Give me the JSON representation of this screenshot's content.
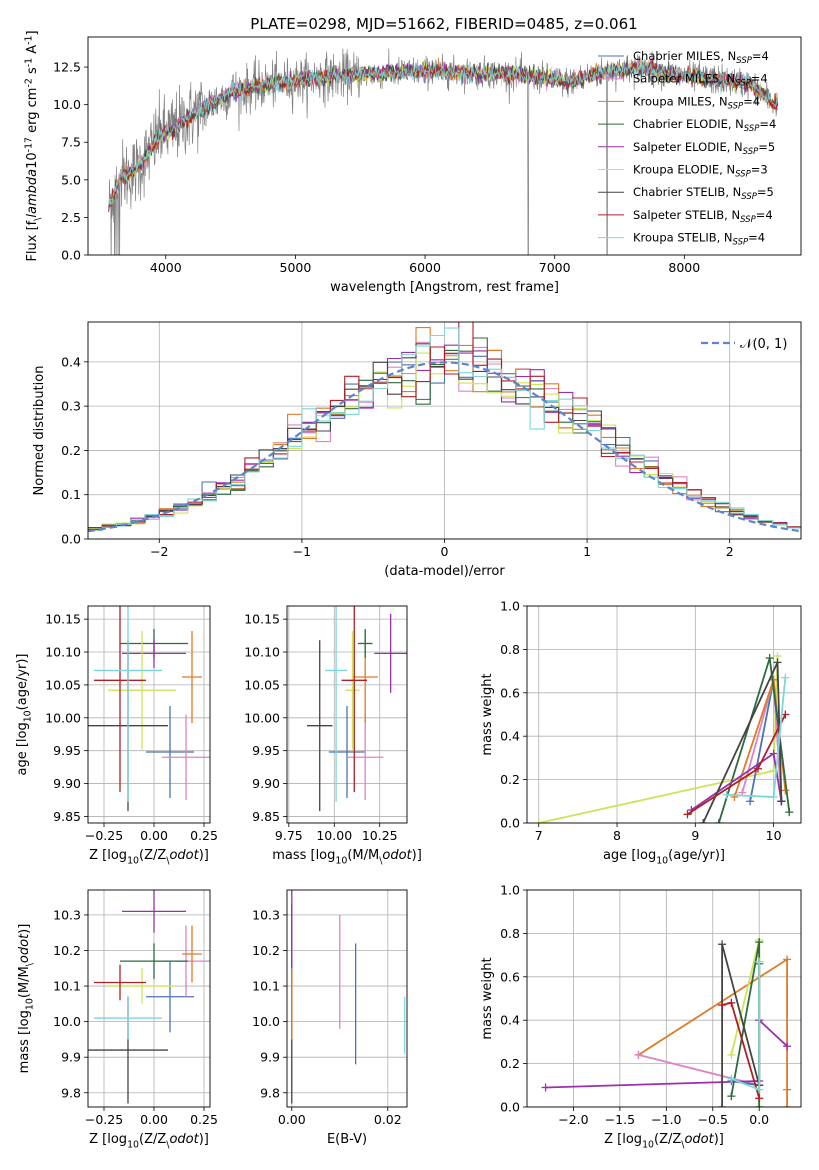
{
  "figure_title": "PLATE=0298, MJD=51662, FIBERID=0485, z=0.061",
  "series": [
    {
      "key": "chab_miles",
      "label": "Chabrier MILES, N<sub>SSP</sub>=4",
      "color": "#4c72b0"
    },
    {
      "key": "salp_miles",
      "label": "Salpeter MILES, N<sub>SSP</sub>=4",
      "color": "#dd84c4"
    },
    {
      "key": "krou_miles",
      "label": "Kroupa MILES, N<sub>SSP</sub>=4",
      "color": "#e07a27"
    },
    {
      "key": "chab_elodie",
      "label": "Chabrier ELODIE, N<sub>SSP</sub>=4",
      "color": "#2e6a3d"
    },
    {
      "key": "salp_elodie",
      "label": "Salpeter ELODIE, N<sub>SSP</sub>=5",
      "color": "#9b2fae"
    },
    {
      "key": "krou_elodie",
      "label": "Kroupa ELODIE, N<sub>SSP</sub>=3",
      "color": "#cfe356"
    },
    {
      "key": "chab_stelib",
      "label": "Chabrier STELIB, N<sub>SSP</sub>=5",
      "color": "#444444"
    },
    {
      "key": "salp_stelib",
      "label": "Salpeter STELIB, N<sub>SSP</sub>=4",
      "color": "#b01f24"
    },
    {
      "key": "krou_stelib",
      "label": "Kroupa STELIB, N<sub>SSP</sub>=4",
      "color": "#7fd6d8"
    }
  ],
  "chart_data": [
    {
      "id": "spectrum",
      "type": "line",
      "xlabel": "wavelength [Angstrom, rest frame]",
      "ylabel": "Flux [f$_\\lambda$10$^{-17}$ erg cm$^{-2}$ s$^{-1}$ A$^{-1}$]",
      "xlim": [
        3400,
        8900
      ],
      "ylim": [
        0,
        14.5
      ],
      "xticks": [
        4000,
        5000,
        6000,
        7000,
        8000
      ],
      "yticks": [
        0.0,
        2.5,
        5.0,
        7.5,
        10.0,
        12.5
      ],
      "continuum": {
        "x": [
          3550,
          3650,
          3750,
          3850,
          3950,
          4050,
          4150,
          4300,
          4500,
          4700,
          4900,
          5100,
          5300,
          5500,
          5700,
          5900,
          6100,
          6300,
          6500,
          6700,
          6900,
          7100,
          7300,
          7500,
          7700,
          7900,
          8100,
          8300,
          8500,
          8700
        ],
        "y": [
          3.0,
          5.2,
          5.5,
          6.5,
          8.0,
          8.3,
          9.0,
          9.8,
          10.8,
          11.2,
          11.5,
          11.7,
          11.9,
          12.0,
          12.1,
          12.2,
          12.2,
          12.1,
          12.1,
          12.0,
          11.8,
          11.5,
          12.0,
          12.3,
          12.5,
          12.0,
          11.8,
          11.6,
          11.4,
          10.0
        ]
      },
      "data_color": "#808080",
      "data_dropouts": [
        6795,
        7405
      ]
    },
    {
      "id": "residual-hist",
      "type": "histogram",
      "xlabel": "(data-model)/error",
      "ylabel": "Normed distribution",
      "xlim": [
        -2.5,
        2.5
      ],
      "ylim": [
        0,
        0.49
      ],
      "xticks": [
        -2,
        -1,
        0,
        1,
        2
      ],
      "yticks": [
        0.0,
        0.1,
        0.2,
        0.3,
        0.4
      ],
      "bin_width": 0.1,
      "gaussian_label": "$\\mathcal{N}(0, 1)$",
      "gaussian_color": "#5b84d1"
    },
    {
      "id": "age-vs-z",
      "type": "errorbar",
      "xlabel": "Z [log$_{10}$(Z/Z$_\\odot$)]",
      "ylabel": "age  [log$_{10}$(age/yr)]",
      "xlim": [
        -0.33,
        0.28
      ],
      "ylim": [
        9.84,
        10.17
      ],
      "xticks": [
        -0.25,
        0.0,
        0.25
      ],
      "yticks": [
        9.85,
        9.9,
        9.95,
        10.0,
        10.05,
        10.1,
        10.15
      ],
      "points": [
        {
          "s": "chab_miles",
          "x": 0.08,
          "y": 9.948,
          "xerr": 0.12,
          "yerr": [
            0.07,
            0.07
          ]
        },
        {
          "s": "salp_miles",
          "x": 0.16,
          "y": 9.94,
          "xerr": 0.12,
          "yerr": [
            0.065,
            0.065
          ]
        },
        {
          "s": "krou_miles",
          "x": 0.19,
          "y": 10.062,
          "xerr": 0.05,
          "yerr": [
            0.07,
            0.07
          ]
        },
        {
          "s": "chab_elodie",
          "x": 0.0,
          "y": 10.113,
          "xerr": 0.17,
          "yerr": [
            0.022,
            0.022
          ]
        },
        {
          "s": "salp_elodie",
          "x": 0.0,
          "y": 10.098,
          "xerr": 0.16,
          "yerr": [
            0.022,
            0.022
          ]
        },
        {
          "s": "krou_elodie",
          "x": -0.06,
          "y": 10.042,
          "xerr": 0.17,
          "yerr": [
            0.09,
            0.09
          ]
        },
        {
          "s": "chab_stelib",
          "x": -0.13,
          "y": 9.988,
          "xerr": 0.2,
          "yerr": [
            0.13,
            0.13
          ]
        },
        {
          "s": "salp_stelib",
          "x": -0.17,
          "y": 10.057,
          "xerr": 0.13,
          "yerr": [
            0.17,
            0.17
          ]
        },
        {
          "s": "krou_stelib",
          "x": -0.13,
          "y": 10.072,
          "xerr": 0.17,
          "yerr": [
            0.2,
            0.2
          ]
        }
      ]
    },
    {
      "id": "age-vs-mass",
      "type": "errorbar",
      "xlabel": "mass [log$_{10}$(M/M$_\\odot$)]",
      "ylabel": "",
      "xlim": [
        9.74,
        10.4
      ],
      "ylim": [
        9.84,
        10.17
      ],
      "xticks": [
        9.75,
        10.0,
        10.25
      ],
      "yticks": [
        9.85,
        9.9,
        9.95,
        10.0,
        10.05,
        10.1,
        10.15
      ],
      "points": [
        {
          "s": "chab_miles",
          "x": 10.07,
          "y": 9.948,
          "xerr": 0.1,
          "yerr": [
            0.07,
            0.07
          ]
        },
        {
          "s": "salp_miles",
          "x": 10.17,
          "y": 9.94,
          "xerr": 0.1,
          "yerr": [
            0.065,
            0.065
          ]
        },
        {
          "s": "krou_miles",
          "x": 10.17,
          "y": 10.062,
          "xerr": 0.07,
          "yerr": [
            0.07,
            0.07
          ]
        },
        {
          "s": "chab_elodie",
          "x": 10.17,
          "y": 10.113,
          "xerr": 0.04,
          "yerr": [
            0.022,
            0.022
          ]
        },
        {
          "s": "salp_elodie",
          "x": 10.31,
          "y": 10.098,
          "xerr": 0.09,
          "yerr": [
            0.06,
            0.06
          ]
        },
        {
          "s": "krou_elodie",
          "x": 10.1,
          "y": 10.042,
          "xerr": 0.04,
          "yerr": [
            0.09,
            0.09
          ]
        },
        {
          "s": "chab_stelib",
          "x": 9.92,
          "y": 9.988,
          "xerr": 0.07,
          "yerr": [
            0.13,
            0.13
          ]
        },
        {
          "s": "salp_stelib",
          "x": 10.11,
          "y": 10.057,
          "xerr": 0.07,
          "yerr": [
            0.17,
            0.17
          ]
        },
        {
          "s": "krou_stelib",
          "x": 10.01,
          "y": 10.072,
          "xerr": 0.06,
          "yerr": [
            0.2,
            0.2
          ]
        }
      ]
    },
    {
      "id": "mass-weight-vs-age",
      "type": "line",
      "xlabel": "age  [log$_{10}$(age/yr)]",
      "ylabel": "mass weight",
      "xlim": [
        6.85,
        10.35
      ],
      "ylim": [
        0,
        1.0
      ],
      "xticks": [
        7,
        8,
        9,
        10
      ],
      "yticks": [
        0.0,
        0.2,
        0.4,
        0.6,
        0.8,
        1.0
      ],
      "lines": [
        {
          "s": "krou_elodie",
          "x": [
            7.0,
            10.0,
            10.05
          ],
          "y": [
            0.0,
            0.24,
            0.77
          ]
        },
        {
          "s": "chab_miles",
          "x": [
            9.7,
            10.0,
            10.1
          ],
          "y": [
            0.1,
            0.66,
            0.1
          ]
        },
        {
          "s": "salp_miles",
          "x": [
            9.6,
            10.0,
            10.1
          ],
          "y": [
            0.14,
            0.66,
            0.1
          ]
        },
        {
          "s": "krou_miles",
          "x": [
            9.5,
            10.0,
            10.15
          ],
          "y": [
            0.12,
            0.66,
            0.15
          ]
        },
        {
          "s": "chab_elodie",
          "x": [
            9.3,
            9.95,
            10.2
          ],
          "y": [
            0.0,
            0.76,
            0.05
          ]
        },
        {
          "s": "salp_elodie",
          "x": [
            8.95,
            10.0,
            10.1
          ],
          "y": [
            0.06,
            0.32,
            0.1
          ]
        },
        {
          "s": "chab_stelib",
          "x": [
            9.1,
            10.05,
            10.1
          ],
          "y": [
            0.0,
            0.74,
            0.1
          ]
        },
        {
          "s": "salp_stelib",
          "x": [
            8.9,
            9.8,
            10.15
          ],
          "y": [
            0.04,
            0.25,
            0.5
          ]
        },
        {
          "s": "krou_stelib",
          "x": [
            9.4,
            10.0,
            10.15
          ],
          "y": [
            0.13,
            0.12,
            0.67
          ]
        }
      ]
    },
    {
      "id": "mass-vs-z",
      "type": "errorbar",
      "xlabel": "Z [log$_{10}$(Z/Z$_\\odot$)]",
      "ylabel": "mass [log$_{10}$(M/M$_\\odot$)]",
      "xlim": [
        -0.33,
        0.28
      ],
      "ylim": [
        9.76,
        10.37
      ],
      "xticks": [
        -0.25,
        0.0,
        0.25
      ],
      "yticks": [
        9.8,
        9.9,
        10.0,
        10.1,
        10.2,
        10.3
      ],
      "points": [
        {
          "s": "chab_miles",
          "x": 0.08,
          "y": 10.07,
          "xerr": 0.12,
          "yerr": [
            0.1,
            0.1
          ]
        },
        {
          "s": "salp_miles",
          "x": 0.16,
          "y": 10.17,
          "xerr": 0.12,
          "yerr": [
            0.1,
            0.1
          ]
        },
        {
          "s": "krou_miles",
          "x": 0.19,
          "y": 10.19,
          "xerr": 0.05,
          "yerr": [
            0.08,
            0.08
          ]
        },
        {
          "s": "chab_elodie",
          "x": 0.0,
          "y": 10.17,
          "xerr": 0.17,
          "yerr": [
            0.05,
            0.05
          ]
        },
        {
          "s": "salp_elodie",
          "x": 0.0,
          "y": 10.31,
          "xerr": 0.16,
          "yerr": [
            0.06,
            0.06
          ]
        },
        {
          "s": "krou_elodie",
          "x": -0.06,
          "y": 10.1,
          "xerr": 0.17,
          "yerr": [
            0.05,
            0.05
          ]
        },
        {
          "s": "chab_stelib",
          "x": -0.13,
          "y": 9.92,
          "xerr": 0.2,
          "yerr": [
            0.15,
            0.15
          ]
        },
        {
          "s": "salp_stelib",
          "x": -0.17,
          "y": 10.11,
          "xerr": 0.13,
          "yerr": [
            0.05,
            0.05
          ]
        },
        {
          "s": "krou_stelib",
          "x": -0.13,
          "y": 10.01,
          "xerr": 0.17,
          "yerr": [
            0.06,
            0.06
          ]
        }
      ]
    },
    {
      "id": "mass-vs-ebv",
      "type": "errorbar",
      "xlabel": "E(B-V)",
      "ylabel": "",
      "xlim": [
        -0.001,
        0.024
      ],
      "ylim": [
        9.76,
        10.37
      ],
      "xticks": [
        0.0,
        0.02
      ],
      "yticks": [
        9.8,
        9.9,
        10.0,
        10.1,
        10.2,
        10.3
      ],
      "points": [
        {
          "s": "chab_stelib",
          "x": 0.0,
          "y": 10.05,
          "xerr": 0,
          "yerr": [
            0.28,
            0.28
          ]
        },
        {
          "s": "salp_elodie",
          "x": 0.0,
          "y": 10.25,
          "xerr": 0,
          "yerr": [
            0.12,
            0.12
          ]
        },
        {
          "s": "krou_miles",
          "x": 0.0,
          "y": 10.05,
          "xerr": 0,
          "yerr": [
            0.1,
            0.1
          ]
        },
        {
          "s": "salp_miles",
          "x": 0.01,
          "y": 10.14,
          "xerr": 0,
          "yerr": [
            0.16,
            0.16
          ]
        },
        {
          "s": "chab_miles",
          "x": 0.0133,
          "y": 10.05,
          "xerr": 0,
          "yerr": [
            0.17,
            0.17
          ]
        },
        {
          "s": "krou_stelib",
          "x": 0.0235,
          "y": 9.99,
          "xerr": 0,
          "yerr": [
            0.08,
            0.08
          ]
        }
      ]
    },
    {
      "id": "mass-weight-vs-z",
      "type": "line",
      "xlabel": "Z [log$_{10}$(Z/Z$_\\odot$)]",
      "ylabel": "mass weight",
      "xlim": [
        -2.5,
        0.45
      ],
      "ylim": [
        0,
        1.0
      ],
      "xticks": [
        -2.0,
        -1.5,
        -1.0,
        -0.5,
        0.0
      ],
      "yticks": [
        0.0,
        0.2,
        0.4,
        0.6,
        0.8,
        1.0
      ],
      "lines": [
        {
          "s": "krou_miles",
          "x": [
            -1.3,
            0.3,
            0.3,
            0.3
          ],
          "y": [
            0.24,
            0.68,
            0.08,
            0.0
          ]
        },
        {
          "s": "salp_miles",
          "x": [
            -1.3,
            0.0,
            0.0
          ],
          "y": [
            0.24,
            0.1,
            0.66
          ]
        },
        {
          "s": "salp_elodie",
          "x": [
            -2.3,
            0.0,
            0.0,
            0.3
          ],
          "y": [
            0.09,
            0.12,
            0.4,
            0.28
          ]
        },
        {
          "s": "chab_miles",
          "x": [
            -0.3,
            0.0,
            0.0
          ],
          "y": [
            0.12,
            0.1,
            0.66
          ]
        },
        {
          "s": "krou_elodie",
          "x": [
            -0.3,
            0.0,
            0.0
          ],
          "y": [
            0.24,
            0.77,
            0.0
          ]
        },
        {
          "s": "chab_elodie",
          "x": [
            -0.3,
            0.0,
            0.0
          ],
          "y": [
            0.05,
            0.76,
            0.0
          ]
        },
        {
          "s": "chab_stelib",
          "x": [
            -0.4,
            -0.4,
            0.0
          ],
          "y": [
            0.0,
            0.75,
            0.1
          ]
        },
        {
          "s": "salp_stelib",
          "x": [
            -0.4,
            -0.3,
            0.0
          ],
          "y": [
            0.47,
            0.48,
            0.04
          ]
        },
        {
          "s": "krou_stelib",
          "x": [
            -0.3,
            0.0,
            0.0
          ],
          "y": [
            0.13,
            0.08,
            0.67
          ]
        }
      ]
    }
  ]
}
